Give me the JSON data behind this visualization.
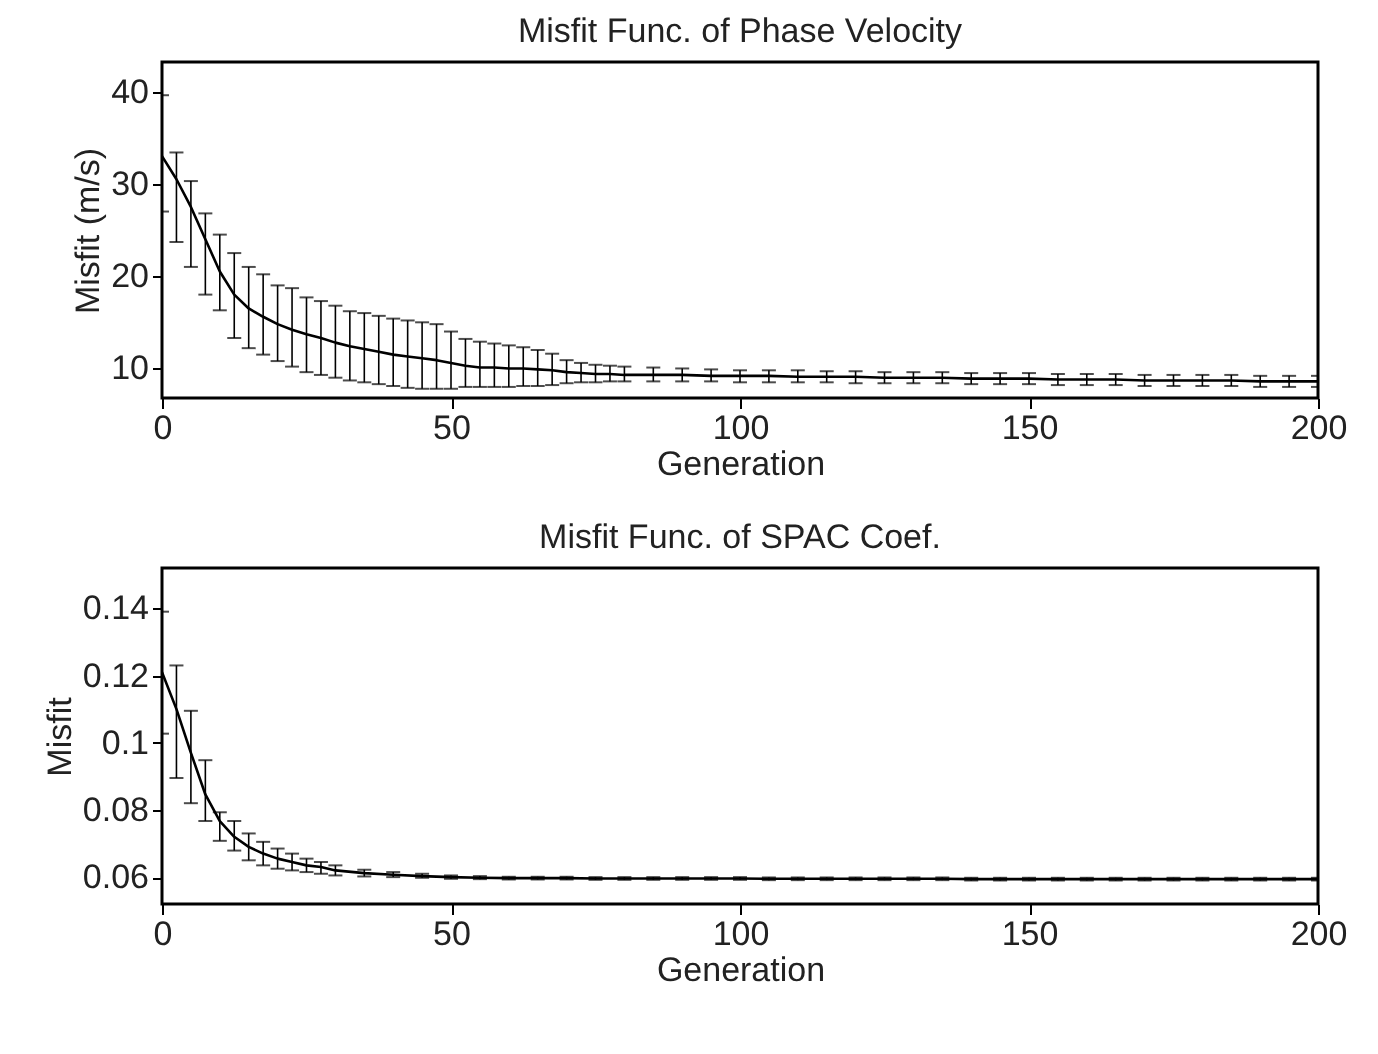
{
  "chart_data": [
    {
      "type": "line",
      "title": "Misfit Func. of Phase Velocity",
      "xlabel": "Generation",
      "ylabel": "Misfit (m/s)",
      "xlim": [
        0,
        200
      ],
      "xticks": [
        0,
        50,
        100,
        150,
        200
      ],
      "ylim": [
        6.8,
        43.2
      ],
      "yticks": [
        10,
        20,
        30,
        40
      ],
      "grid": false,
      "marker": "none",
      "line_style": "solid",
      "x": [
        0,
        2.5,
        5,
        7.5,
        10,
        12.5,
        15,
        17.5,
        20,
        22.5,
        25,
        27.5,
        30,
        32.5,
        35,
        37.5,
        40,
        42.5,
        45,
        47.5,
        50,
        52.5,
        55,
        57.5,
        60,
        62.5,
        65,
        67.5,
        70,
        72.5,
        75,
        77.5,
        80,
        85,
        90,
        95,
        100,
        105,
        110,
        115,
        120,
        125,
        130,
        135,
        140,
        145,
        150,
        155,
        160,
        165,
        170,
        175,
        180,
        185,
        190,
        195,
        200
      ],
      "series": [
        {
          "color": "#000000",
          "values": [
            33,
            30.5,
            27.5,
            24,
            20.5,
            18,
            16.5,
            15.6,
            14.8,
            14.2,
            13.7,
            13.3,
            12.8,
            12.4,
            12.1,
            11.8,
            11.5,
            11.3,
            11.1,
            10.9,
            10.6,
            10.3,
            10.1,
            10.1,
            10,
            10,
            9.9,
            9.8,
            9.6,
            9.5,
            9.4,
            9.4,
            9.3,
            9.3,
            9.3,
            9.2,
            9.2,
            9.2,
            9.1,
            9.1,
            9.1,
            9,
            9,
            9,
            8.9,
            8.9,
            8.9,
            8.8,
            8.8,
            8.8,
            8.7,
            8.7,
            8.7,
            8.7,
            8.6,
            8.6,
            8.6
          ],
          "errors": [
            [
              27,
              39.6
            ],
            [
              23.7,
              33.4
            ],
            [
              21,
              30.3
            ],
            [
              18,
              26.8
            ],
            [
              16.3,
              24.5
            ],
            [
              13.3,
              22.5
            ],
            [
              12.2,
              21
            ],
            [
              11.5,
              20.2
            ],
            [
              10.8,
              19
            ],
            [
              10.2,
              18.7
            ],
            [
              9.6,
              17.7
            ],
            [
              9.3,
              17.3
            ],
            [
              9,
              16.8
            ],
            [
              8.7,
              16.2
            ],
            [
              8.5,
              16
            ],
            [
              8.3,
              15.7
            ],
            [
              8.1,
              15.4
            ],
            [
              7.9,
              15.2
            ],
            [
              7.8,
              15
            ],
            [
              7.8,
              14.8
            ],
            [
              7.8,
              14
            ],
            [
              8,
              13.2
            ],
            [
              8,
              12.9
            ],
            [
              8,
              12.7
            ],
            [
              8,
              12.5
            ],
            [
              8.1,
              12.3
            ],
            [
              8.1,
              12
            ],
            [
              8.2,
              11.6
            ],
            [
              8.4,
              10.9
            ],
            [
              8.5,
              10.6
            ],
            [
              8.5,
              10.4
            ],
            [
              8.6,
              10.3
            ],
            [
              8.6,
              10.2
            ],
            [
              8.6,
              10.1
            ],
            [
              8.6,
              10
            ],
            [
              8.6,
              9.9
            ],
            [
              8.5,
              9.8
            ],
            [
              8.5,
              9.8
            ],
            [
              8.5,
              9.8
            ],
            [
              8.5,
              9.7
            ],
            [
              8.4,
              9.7
            ],
            [
              8.4,
              9.6
            ],
            [
              8.4,
              9.6
            ],
            [
              8.4,
              9.6
            ],
            [
              8.3,
              9.5
            ],
            [
              8.3,
              9.5
            ],
            [
              8.3,
              9.5
            ],
            [
              8.2,
              9.4
            ],
            [
              8.2,
              9.4
            ],
            [
              8.2,
              9.4
            ],
            [
              8.1,
              9.3
            ],
            [
              8.1,
              9.3
            ],
            [
              8.1,
              9.3
            ],
            [
              8.1,
              9.3
            ],
            [
              8,
              9.2
            ],
            [
              8,
              9.2
            ],
            [
              8,
              9.2
            ]
          ]
        }
      ]
    },
    {
      "type": "line",
      "title": "Misfit Func. of SPAC Coef.",
      "xlabel": "Generation",
      "ylabel": "Misfit",
      "xlim": [
        0,
        200
      ],
      "xticks": [
        0,
        50,
        100,
        150,
        200
      ],
      "ylim": [
        0.052,
        0.152
      ],
      "yticks": [
        0.06,
        0.08,
        {
          "value": 0.1,
          "label": "0.1"
        },
        0.12,
        0.14
      ],
      "grid": false,
      "marker": "none",
      "line_style": "solid",
      "x": [
        0,
        2.5,
        5,
        7.5,
        10,
        12.5,
        15,
        17.5,
        20,
        22.5,
        25,
        27.5,
        30,
        35,
        40,
        45,
        50,
        55,
        60,
        65,
        70,
        75,
        80,
        85,
        90,
        95,
        100,
        105,
        110,
        115,
        120,
        125,
        130,
        135,
        140,
        145,
        150,
        155,
        160,
        165,
        170,
        175,
        180,
        185,
        190,
        195,
        200
      ],
      "series": [
        {
          "color": "#000000",
          "values": [
            0.121,
            0.11,
            0.097,
            0.0846,
            0.0767,
            0.072,
            0.069,
            0.067,
            0.0655,
            0.0645,
            0.0635,
            0.063,
            0.062,
            0.0612,
            0.0607,
            0.0603,
            0.06,
            0.0598,
            0.0597,
            0.0597,
            0.0597,
            0.0596,
            0.0596,
            0.0596,
            0.0596,
            0.0596,
            0.0596,
            0.0595,
            0.0595,
            0.0595,
            0.0595,
            0.0595,
            0.0595,
            0.0595,
            0.0594,
            0.0594,
            0.0594,
            0.0594,
            0.0594,
            0.0594,
            0.0594,
            0.0594,
            0.0594,
            0.0594,
            0.0594,
            0.0594,
            0.0594
          ],
          "errors": [
            [
              0.1027,
              0.139
            ],
            [
              0.0895,
              0.123
            ],
            [
              0.082,
              0.1095
            ],
            [
              0.0767,
              0.0948
            ],
            [
              0.0708,
              0.0793
            ],
            [
              0.0679,
              0.0767
            ],
            [
              0.065,
              0.073
            ],
            [
              0.0635,
              0.0705
            ],
            [
              0.0625,
              0.0685
            ],
            [
              0.062,
              0.067
            ],
            [
              0.0615,
              0.0655
            ],
            [
              0.061,
              0.0645
            ],
            [
              0.0605,
              0.0635
            ],
            [
              0.0602,
              0.0622
            ],
            [
              0.06,
              0.0615
            ],
            [
              0.0598,
              0.061
            ],
            [
              0.0595,
              0.0605
            ],
            [
              0.0594,
              0.0603
            ],
            [
              0.0593,
              0.0601
            ],
            [
              0.0593,
              0.0601
            ],
            [
              0.0593,
              0.0601
            ],
            [
              0.0592,
              0.06
            ],
            [
              0.0592,
              0.06
            ],
            [
              0.0592,
              0.06
            ],
            [
              0.0592,
              0.06
            ],
            [
              0.0592,
              0.06
            ],
            [
              0.0592,
              0.06
            ],
            [
              0.0591,
              0.0599
            ],
            [
              0.0591,
              0.0599
            ],
            [
              0.0591,
              0.0599
            ],
            [
              0.0591,
              0.0599
            ],
            [
              0.0591,
              0.0599
            ],
            [
              0.0591,
              0.0599
            ],
            [
              0.0591,
              0.0599
            ],
            [
              0.059,
              0.0598
            ],
            [
              0.059,
              0.0598
            ],
            [
              0.059,
              0.0598
            ],
            [
              0.059,
              0.0598
            ],
            [
              0.059,
              0.0598
            ],
            [
              0.059,
              0.0598
            ],
            [
              0.059,
              0.0598
            ],
            [
              0.059,
              0.0598
            ],
            [
              0.059,
              0.0598
            ],
            [
              0.059,
              0.0598
            ],
            [
              0.059,
              0.0598
            ],
            [
              0.059,
              0.0598
            ],
            [
              0.059,
              0.0598
            ]
          ]
        }
      ]
    }
  ]
}
